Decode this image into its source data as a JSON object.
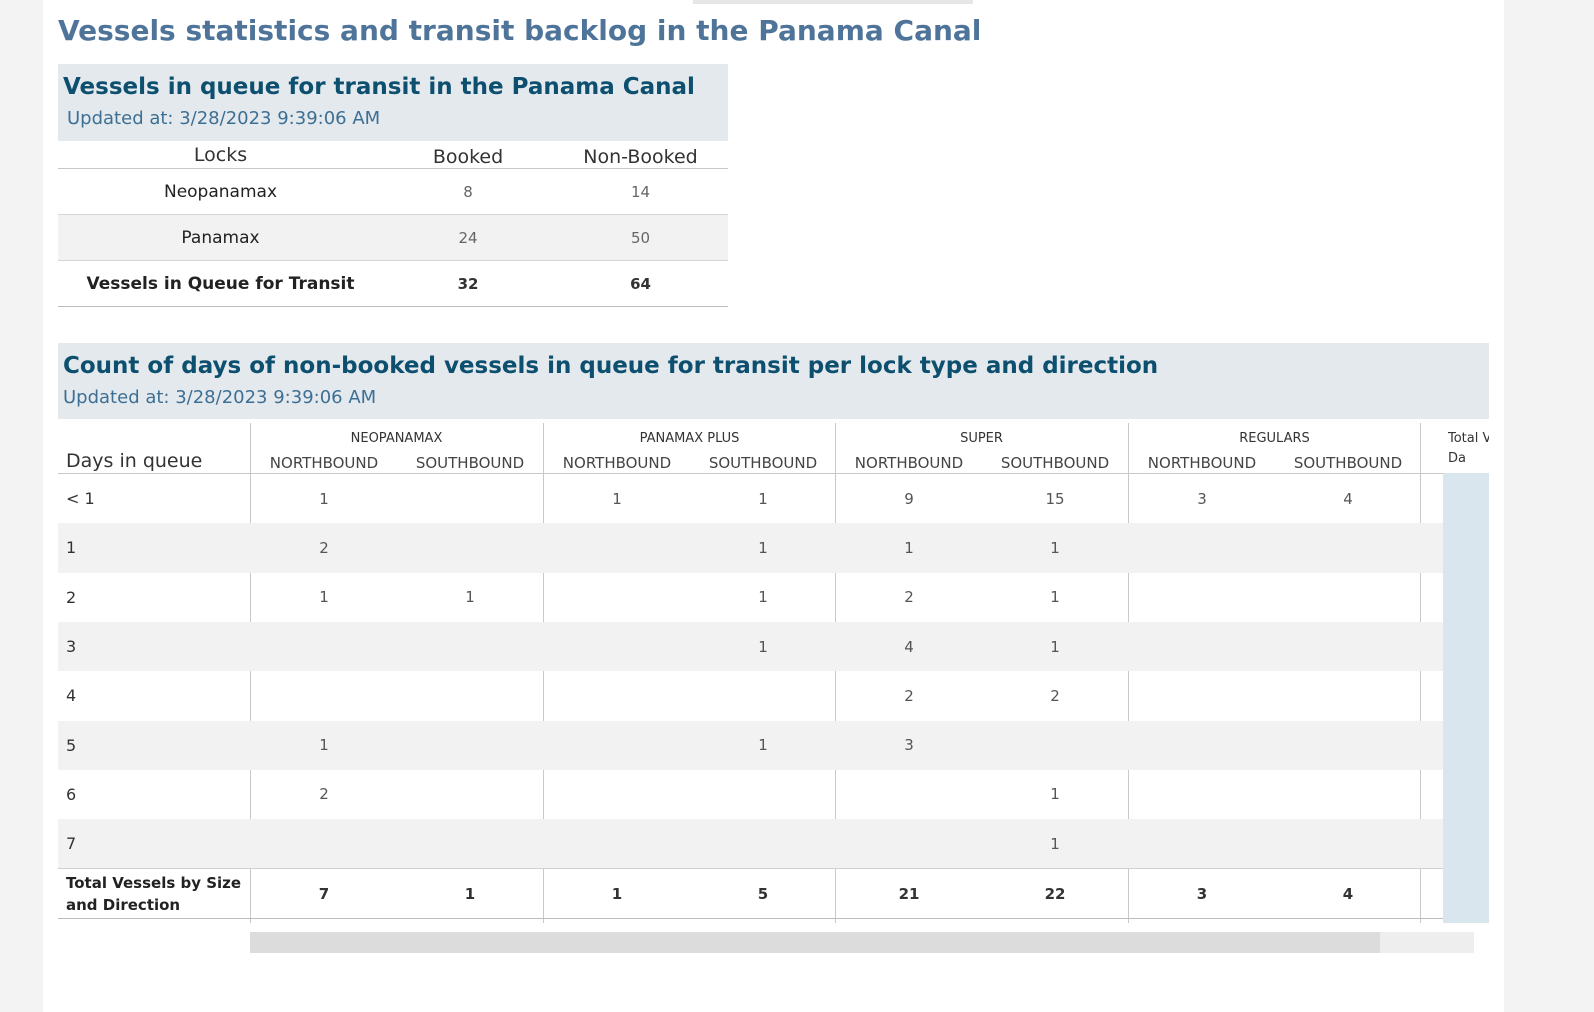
{
  "page": {
    "title": "Vessels statistics and transit backlog in the Panama Canal"
  },
  "queue_panel": {
    "title": "Vessels in queue for transit in the Panama Canal",
    "updated": "Updated at:  3/28/2023 9:39:06 AM",
    "columns": [
      "Locks",
      "Booked",
      "Non-Booked"
    ],
    "rows": [
      {
        "lock": "Neopanamax",
        "booked": "8",
        "non_booked": "14"
      },
      {
        "lock": "Panamax",
        "booked": "24",
        "non_booked": "50"
      },
      {
        "lock": "Vessels in Queue for Transit",
        "booked": "32",
        "non_booked": "64"
      }
    ]
  },
  "days_panel": {
    "title": "Count of days of non-booked vessels in queue for transit per lock type and direction",
    "updated": "Updated at: 3/28/2023 9:39:06 AM",
    "row_header": "Days in queue",
    "groups": [
      "NEOPANAMAX",
      "PANAMAX PLUS",
      "SUPER",
      "REGULARS"
    ],
    "directions": [
      "NORTHBOUND",
      "SOUTHBOUND"
    ],
    "total_column_header_partial": "Total V\nDa",
    "rows": [
      {
        "label": "< 1",
        "values": [
          "1",
          "",
          "1",
          "1",
          "9",
          "15",
          "3",
          "4"
        ]
      },
      {
        "label": "1",
        "values": [
          "2",
          "",
          "",
          "1",
          "1",
          "1",
          "",
          ""
        ]
      },
      {
        "label": "2",
        "values": [
          "1",
          "1",
          "",
          "1",
          "2",
          "1",
          "",
          ""
        ]
      },
      {
        "label": "3",
        "values": [
          "",
          "",
          "",
          "1",
          "4",
          "1",
          "",
          ""
        ]
      },
      {
        "label": "4",
        "values": [
          "",
          "",
          "",
          "",
          "2",
          "2",
          "",
          ""
        ]
      },
      {
        "label": "5",
        "values": [
          "1",
          "",
          "",
          "1",
          "3",
          "",
          "",
          ""
        ]
      },
      {
        "label": "6",
        "values": [
          "2",
          "",
          "",
          "",
          "",
          "1",
          "",
          ""
        ]
      },
      {
        "label": "7",
        "values": [
          "",
          "",
          "",
          "",
          "",
          "1",
          "",
          ""
        ]
      }
    ],
    "total_row": {
      "label_line1": "Total Vessels by Size",
      "label_line2": "and Direction",
      "values": [
        "7",
        "1",
        "1",
        "5",
        "21",
        "22",
        "3",
        "4"
      ]
    }
  },
  "colors": {
    "main_title": "#4f7499",
    "panel_title": "#0d4f6e",
    "panel_header_bg": "#e4e9ee",
    "total_column_bg": "#d9e6ee"
  }
}
